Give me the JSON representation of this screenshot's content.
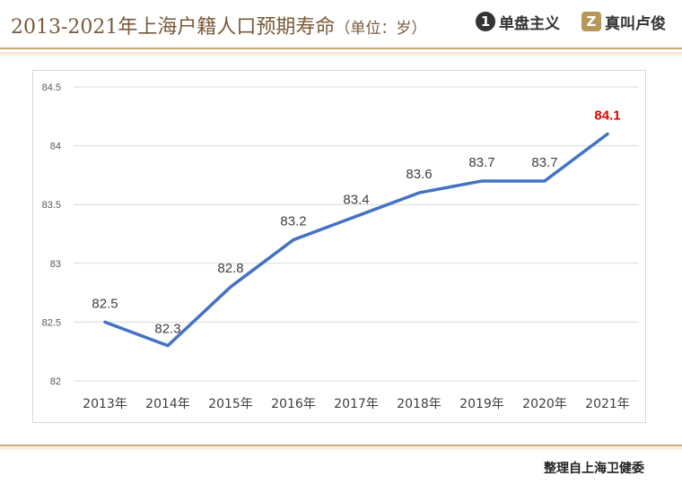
{
  "header": {
    "title_main": "2013-2021年上海户籍人口预期寿命",
    "title_unit": "（单位：岁）",
    "brand_1": {
      "badge": "1",
      "label": "单盘主义"
    },
    "brand_2": {
      "badge": "Z",
      "label": "真叫卢俊"
    }
  },
  "footer": {
    "source": "整理自上海卫健委"
  },
  "colors": {
    "line": "#4472c4",
    "highlight_label": "#e00000",
    "accent": "#caa774",
    "title": "#7a5a3a"
  },
  "chart_data": {
    "type": "line",
    "title": "2013-2021年上海户籍人口预期寿命",
    "categories": [
      "2013年",
      "2014年",
      "2015年",
      "2016年",
      "2017年",
      "2018年",
      "2019年",
      "2020年",
      "2021年"
    ],
    "series": [
      {
        "values": [
          82.5,
          82.3,
          82.8,
          83.2,
          83.4,
          83.6,
          83.7,
          83.7,
          84.1
        ]
      }
    ],
    "data_labels": [
      "82.5",
      "82.3",
      "82.8",
      "83.2",
      "83.4",
      "83.6",
      "83.7",
      "83.7",
      "84.1"
    ],
    "highlight_last_label": true,
    "ylim": [
      82,
      84.5
    ],
    "yticks": [
      82,
      82.5,
      83,
      83.5,
      84,
      84.5
    ],
    "ytick_labels": [
      "82",
      "82.5",
      "83",
      "83.5",
      "84",
      "84.5"
    ],
    "grid": true,
    "legend": "none"
  }
}
